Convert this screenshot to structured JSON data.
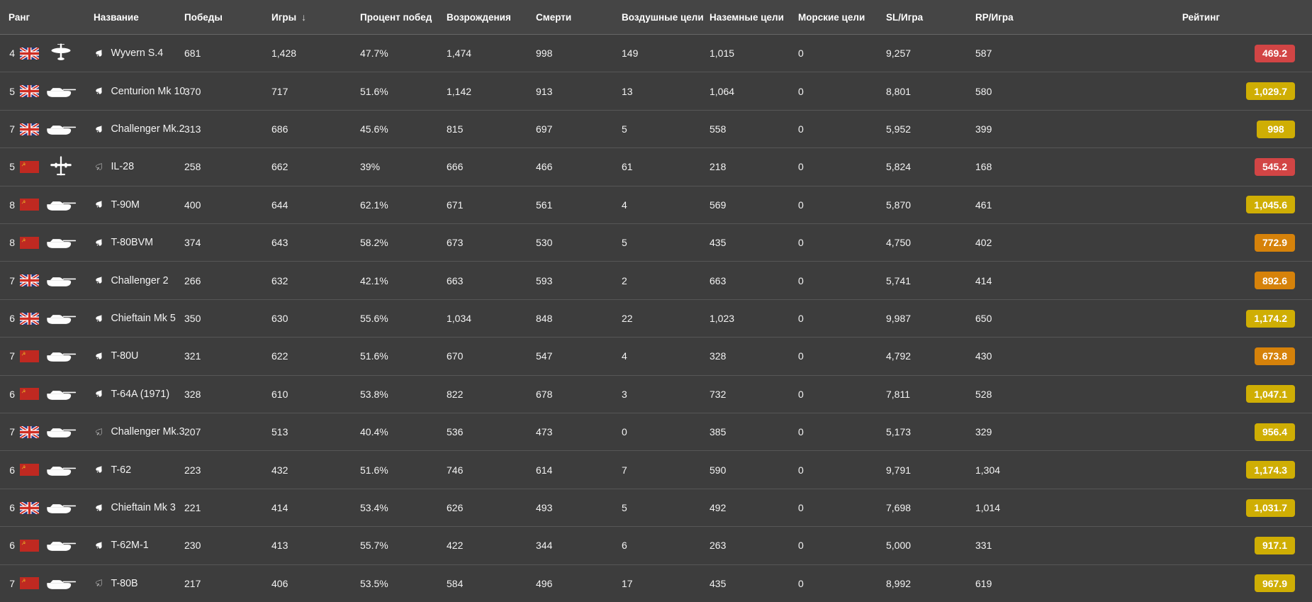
{
  "table": {
    "columns": [
      {
        "key": "rank",
        "label": "Ранг"
      },
      {
        "key": "name",
        "label": "Название"
      },
      {
        "key": "wins",
        "label": "Победы"
      },
      {
        "key": "games",
        "label": "Игры"
      },
      {
        "key": "win_rate",
        "label": "Процент побед"
      },
      {
        "key": "respawns",
        "label": "Возрождения"
      },
      {
        "key": "deaths",
        "label": "Смерти"
      },
      {
        "key": "air_targets",
        "label": "Воздушные цели"
      },
      {
        "key": "ground_targets",
        "label": "Наземные цели"
      },
      {
        "key": "naval_targets",
        "label": "Морские цели"
      },
      {
        "key": "sl_per_game",
        "label": "SL/Игра"
      },
      {
        "key": "rp_per_game",
        "label": "RP/Игра"
      },
      {
        "key": "rating",
        "label": "Рейтинг"
      }
    ],
    "sort": {
      "column": "games",
      "direction": "desc",
      "icon": "↓"
    },
    "colors": {
      "red": "#d24545",
      "orange": "#d6820a",
      "yellow": "#cfae04"
    },
    "flag_colors": {
      "uk_blue": "#263782",
      "uk_red": "#cf2e24",
      "ussr_red": "#bf2921",
      "ussr_gold": "#e9b424"
    },
    "icons": {
      "spade_filled": "♠",
      "spade_outline": "♤"
    },
    "rows": [
      {
        "rank": "4",
        "country": "uk",
        "vehicle": "plane",
        "spade": "filled",
        "name": "Wyvern S.4",
        "wins": "681",
        "games": "1,428",
        "win_rate": "47.7%",
        "respawns": "1,474",
        "deaths": "998",
        "air_targets": "149",
        "ground_targets": "1,015",
        "naval_targets": "0",
        "sl_per_game": "9,257",
        "rp_per_game": "587",
        "rating": {
          "value": "469.2",
          "color": "red"
        }
      },
      {
        "rank": "5",
        "country": "uk",
        "vehicle": "tank",
        "spade": "filled",
        "name": "Centurion Mk 10",
        "wins": "370",
        "games": "717",
        "win_rate": "51.6%",
        "respawns": "1,142",
        "deaths": "913",
        "air_targets": "13",
        "ground_targets": "1,064",
        "naval_targets": "0",
        "sl_per_game": "8,801",
        "rp_per_game": "580",
        "rating": {
          "value": "1,029.7",
          "color": "yellow"
        }
      },
      {
        "rank": "7",
        "country": "uk",
        "vehicle": "tank",
        "spade": "filled",
        "name": "Challenger Mk.2",
        "wins": "313",
        "games": "686",
        "win_rate": "45.6%",
        "respawns": "815",
        "deaths": "697",
        "air_targets": "5",
        "ground_targets": "558",
        "naval_targets": "0",
        "sl_per_game": "5,952",
        "rp_per_game": "399",
        "rating": {
          "value": "998",
          "color": "yellow"
        }
      },
      {
        "rank": "5",
        "country": "ussr",
        "vehicle": "jet",
        "spade": "outline",
        "name": "IL-28",
        "wins": "258",
        "games": "662",
        "win_rate": "39%",
        "respawns": "666",
        "deaths": "466",
        "air_targets": "61",
        "ground_targets": "218",
        "naval_targets": "0",
        "sl_per_game": "5,824",
        "rp_per_game": "168",
        "rating": {
          "value": "545.2",
          "color": "red"
        }
      },
      {
        "rank": "8",
        "country": "ussr",
        "vehicle": "tank",
        "spade": "filled",
        "name": "T-90M",
        "wins": "400",
        "games": "644",
        "win_rate": "62.1%",
        "respawns": "671",
        "deaths": "561",
        "air_targets": "4",
        "ground_targets": "569",
        "naval_targets": "0",
        "sl_per_game": "5,870",
        "rp_per_game": "461",
        "rating": {
          "value": "1,045.6",
          "color": "yellow"
        }
      },
      {
        "rank": "8",
        "country": "ussr",
        "vehicle": "tank",
        "spade": "filled",
        "name": "T-80BVM",
        "wins": "374",
        "games": "643",
        "win_rate": "58.2%",
        "respawns": "673",
        "deaths": "530",
        "air_targets": "5",
        "ground_targets": "435",
        "naval_targets": "0",
        "sl_per_game": "4,750",
        "rp_per_game": "402",
        "rating": {
          "value": "772.9",
          "color": "orange"
        }
      },
      {
        "rank": "7",
        "country": "uk",
        "vehicle": "tank",
        "spade": "filled",
        "name": "Challenger 2",
        "wins": "266",
        "games": "632",
        "win_rate": "42.1%",
        "respawns": "663",
        "deaths": "593",
        "air_targets": "2",
        "ground_targets": "663",
        "naval_targets": "0",
        "sl_per_game": "5,741",
        "rp_per_game": "414",
        "rating": {
          "value": "892.6",
          "color": "orange"
        }
      },
      {
        "rank": "6",
        "country": "uk",
        "vehicle": "tank",
        "spade": "filled",
        "name": "Chieftain Mk 5",
        "wins": "350",
        "games": "630",
        "win_rate": "55.6%",
        "respawns": "1,034",
        "deaths": "848",
        "air_targets": "22",
        "ground_targets": "1,023",
        "naval_targets": "0",
        "sl_per_game": "9,987",
        "rp_per_game": "650",
        "rating": {
          "value": "1,174.2",
          "color": "yellow"
        }
      },
      {
        "rank": "7",
        "country": "ussr",
        "vehicle": "tank",
        "spade": "filled",
        "name": "T-80U",
        "wins": "321",
        "games": "622",
        "win_rate": "51.6%",
        "respawns": "670",
        "deaths": "547",
        "air_targets": "4",
        "ground_targets": "328",
        "naval_targets": "0",
        "sl_per_game": "4,792",
        "rp_per_game": "430",
        "rating": {
          "value": "673.8",
          "color": "orange"
        }
      },
      {
        "rank": "6",
        "country": "ussr",
        "vehicle": "tank",
        "spade": "filled",
        "name": "T-64A (1971)",
        "wins": "328",
        "games": "610",
        "win_rate": "53.8%",
        "respawns": "822",
        "deaths": "678",
        "air_targets": "3",
        "ground_targets": "732",
        "naval_targets": "0",
        "sl_per_game": "7,811",
        "rp_per_game": "528",
        "rating": {
          "value": "1,047.1",
          "color": "yellow"
        }
      },
      {
        "rank": "7",
        "country": "uk",
        "vehicle": "tank",
        "spade": "outline",
        "name": "Challenger Mk.3",
        "wins": "207",
        "games": "513",
        "win_rate": "40.4%",
        "respawns": "536",
        "deaths": "473",
        "air_targets": "0",
        "ground_targets": "385",
        "naval_targets": "0",
        "sl_per_game": "5,173",
        "rp_per_game": "329",
        "rating": {
          "value": "956.4",
          "color": "yellow"
        }
      },
      {
        "rank": "6",
        "country": "ussr",
        "vehicle": "tank",
        "spade": "filled",
        "name": "T-62",
        "wins": "223",
        "games": "432",
        "win_rate": "51.6%",
        "respawns": "746",
        "deaths": "614",
        "air_targets": "7",
        "ground_targets": "590",
        "naval_targets": "0",
        "sl_per_game": "9,791",
        "rp_per_game": "1,304",
        "rating": {
          "value": "1,174.3",
          "color": "yellow"
        }
      },
      {
        "rank": "6",
        "country": "uk",
        "vehicle": "tank",
        "spade": "filled",
        "name": "Chieftain Mk 3",
        "wins": "221",
        "games": "414",
        "win_rate": "53.4%",
        "respawns": "626",
        "deaths": "493",
        "air_targets": "5",
        "ground_targets": "492",
        "naval_targets": "0",
        "sl_per_game": "7,698",
        "rp_per_game": "1,014",
        "rating": {
          "value": "1,031.7",
          "color": "yellow"
        }
      },
      {
        "rank": "6",
        "country": "ussr",
        "vehicle": "tank",
        "spade": "filled",
        "name": "T-62M-1",
        "wins": "230",
        "games": "413",
        "win_rate": "55.7%",
        "respawns": "422",
        "deaths": "344",
        "air_targets": "6",
        "ground_targets": "263",
        "naval_targets": "0",
        "sl_per_game": "5,000",
        "rp_per_game": "331",
        "rating": {
          "value": "917.1",
          "color": "yellow"
        }
      },
      {
        "rank": "7",
        "country": "ussr",
        "vehicle": "tank",
        "spade": "outline",
        "name": "T-80B",
        "wins": "217",
        "games": "406",
        "win_rate": "53.5%",
        "respawns": "584",
        "deaths": "496",
        "air_targets": "17",
        "ground_targets": "435",
        "naval_targets": "0",
        "sl_per_game": "8,992",
        "rp_per_game": "619",
        "rating": {
          "value": "967.9",
          "color": "yellow"
        }
      }
    ]
  }
}
